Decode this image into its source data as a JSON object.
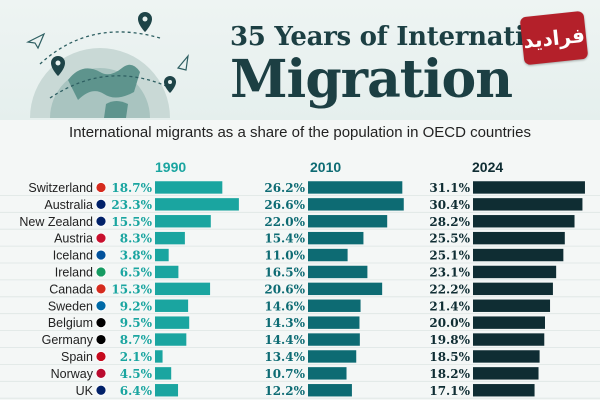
{
  "header": {
    "title_line1": "35 Years of International",
    "title_line2": "Migration",
    "logo_text": "فرادید"
  },
  "subtitle": "International migrants as a share of the population in OECD countries",
  "colors": {
    "y1990": "#1aa5a0",
    "y2010": "#0d6b73",
    "y2024": "#0f2d33",
    "title": "#1c3f43"
  },
  "chart_data": {
    "type": "bar",
    "subtitle": "International migrants as a share of the population in OECD countries",
    "categories": [
      "Switzerland",
      "Australia",
      "New Zealand",
      "Austria",
      "Iceland",
      "Ireland",
      "Canada",
      "Sweden",
      "Belgium",
      "Germany",
      "Spain",
      "Norway",
      "UK"
    ],
    "flags": [
      "switzerland-flag-icon",
      "australia-flag-icon",
      "new-zealand-flag-icon",
      "austria-flag-icon",
      "iceland-flag-icon",
      "ireland-flag-icon",
      "canada-flag-icon",
      "sweden-flag-icon",
      "belgium-flag-icon",
      "germany-flag-icon",
      "spain-flag-icon",
      "norway-flag-icon",
      "uk-flag-icon"
    ],
    "series": [
      {
        "name": "1990",
        "values": [
          18.7,
          23.3,
          15.5,
          8.3,
          3.8,
          6.5,
          15.3,
          9.2,
          9.5,
          8.7,
          2.1,
          4.5,
          6.4
        ],
        "labels": [
          "18.7%",
          "23.3%",
          "15.5%",
          "8.3%",
          "3.8%",
          "6.5%",
          "15.3%",
          "9.2%",
          "9.5%",
          "8.7%",
          "2.1%",
          "4.5%",
          "6.4%"
        ]
      },
      {
        "name": "2010",
        "values": [
          26.2,
          26.6,
          22.0,
          15.4,
          11.0,
          16.5,
          20.6,
          14.6,
          14.3,
          14.4,
          13.4,
          10.7,
          12.2
        ],
        "labels": [
          "26.2%",
          "26.6%",
          "22.0%",
          "15.4%",
          "11.0%",
          "16.5%",
          "20.6%",
          "14.6%",
          "14.3%",
          "14.4%",
          "13.4%",
          "10.7%",
          "12.2%"
        ]
      },
      {
        "name": "2024",
        "values": [
          31.1,
          30.4,
          28.2,
          25.5,
          25.1,
          23.1,
          22.2,
          21.4,
          20.0,
          19.8,
          18.5,
          18.2,
          17.1
        ],
        "labels": [
          "31.1%",
          "30.4%",
          "28.2%",
          "25.5%",
          "25.1%",
          "23.1%",
          "22.2%",
          "21.4%",
          "20.0%",
          "19.8%",
          "18.5%",
          "18.2%",
          "17.1%"
        ]
      }
    ],
    "legend": "column headers"
  }
}
